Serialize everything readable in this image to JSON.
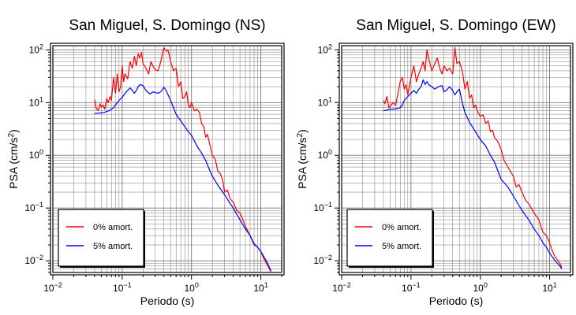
{
  "chart_data": [
    {
      "type": "line",
      "title": "San Miguel, S. Domingo (NS)",
      "xlabel": "Periodo (s)",
      "ylabel": "PSA (cm/s²)",
      "ylabel_main": "PSA (cm/s",
      "ylabel_sup": "2",
      "ylabel_close": ")",
      "x_scale": "log",
      "y_scale": "log",
      "xlim": [
        0.01,
        20
      ],
      "ylim": [
        0.006,
        120
      ],
      "grid": true,
      "legend_position": "bottom-left",
      "x_ticks": [
        {
          "base": "10",
          "exp": "−2"
        },
        {
          "base": "10",
          "exp": "−1"
        },
        {
          "base": "10",
          "exp": "0"
        },
        {
          "base": "10",
          "exp": "1"
        }
      ],
      "y_ticks": [
        {
          "base": "10",
          "exp": "−2"
        },
        {
          "base": "10",
          "exp": "−1"
        },
        {
          "base": "10",
          "exp": "0"
        },
        {
          "base": "10",
          "exp": "1"
        },
        {
          "base": "10",
          "exp": "2"
        }
      ],
      "series": [
        {
          "name": "0% amort.",
          "color": "#ff0000",
          "x": [
            0.04,
            0.042,
            0.045,
            0.048,
            0.05,
            0.053,
            0.056,
            0.06,
            0.063,
            0.067,
            0.07,
            0.075,
            0.08,
            0.085,
            0.09,
            0.095,
            0.1,
            0.105,
            0.11,
            0.12,
            0.13,
            0.14,
            0.15,
            0.16,
            0.17,
            0.18,
            0.19,
            0.2,
            0.22,
            0.24,
            0.26,
            0.28,
            0.3,
            0.33,
            0.36,
            0.4,
            0.43,
            0.46,
            0.5,
            0.55,
            0.6,
            0.65,
            0.7,
            0.75,
            0.8,
            0.85,
            0.9,
            0.95,
            1.0,
            1.1,
            1.2,
            1.3,
            1.4,
            1.5,
            1.6,
            1.7,
            1.8,
            2.0,
            2.2,
            2.4,
            2.6,
            2.8,
            3.0,
            3.3,
            3.6,
            4.0,
            4.5,
            5.0,
            5.5,
            6.0,
            7.0,
            8.0,
            9.0,
            10.0,
            11.0,
            12.0,
            13.0,
            14.0
          ],
          "values": [
            11.5,
            8.0,
            7.0,
            9.5,
            8.2,
            9.0,
            7.5,
            12.0,
            10.0,
            13.0,
            11.0,
            30.0,
            15.0,
            35.0,
            16.0,
            20.0,
            50.0,
            25.0,
            35.0,
            28.0,
            60.0,
            45.0,
            75.0,
            50.0,
            85.0,
            70.0,
            90.0,
            55.0,
            45.0,
            35.0,
            60.0,
            48.0,
            42.0,
            40.0,
            60.0,
            110.0,
            95.0,
            98.0,
            60.0,
            40.0,
            45.0,
            20.0,
            25.0,
            12.0,
            13.0,
            16.0,
            9.0,
            8.0,
            10.0,
            7.0,
            7.5,
            6.5,
            4.0,
            3.5,
            2.2,
            2.5,
            1.8,
            1.0,
            0.85,
            0.5,
            0.45,
            0.35,
            0.2,
            0.22,
            0.15,
            0.13,
            0.09,
            0.08,
            0.06,
            0.045,
            0.03,
            0.02,
            0.018,
            0.015,
            0.011,
            0.009,
            0.0075,
            0.0062
          ]
        },
        {
          "name": "5% amort.",
          "color": "#0000ff",
          "x": [
            0.04,
            0.045,
            0.05,
            0.055,
            0.06,
            0.065,
            0.07,
            0.075,
            0.08,
            0.09,
            0.1,
            0.11,
            0.12,
            0.13,
            0.14,
            0.15,
            0.16,
            0.17,
            0.18,
            0.2,
            0.22,
            0.25,
            0.28,
            0.3,
            0.33,
            0.36,
            0.4,
            0.43,
            0.46,
            0.5,
            0.55,
            0.6,
            0.7,
            0.8,
            0.9,
            1.0,
            1.2,
            1.4,
            1.6,
            1.8,
            2.0,
            2.5,
            3.0,
            3.5,
            4.0,
            5.0,
            6.0,
            7.0,
            8.0,
            9.0,
            10.0,
            12.0,
            14.0
          ],
          "values": [
            6.2,
            6.3,
            6.4,
            6.5,
            6.8,
            7.0,
            7.5,
            8.0,
            9.0,
            11.0,
            12.5,
            15.0,
            17.0,
            19.0,
            17.0,
            15.0,
            17.0,
            20.0,
            22.0,
            21.0,
            17.0,
            14.5,
            16.0,
            15.5,
            15.0,
            16.0,
            19.5,
            17.0,
            14.0,
            11.0,
            8.0,
            6.0,
            4.5,
            3.5,
            2.8,
            2.4,
            1.5,
            1.1,
            0.8,
            0.55,
            0.4,
            0.25,
            0.18,
            0.13,
            0.1,
            0.06,
            0.04,
            0.03,
            0.021,
            0.018,
            0.015,
            0.01,
            0.0065
          ]
        }
      ]
    },
    {
      "type": "line",
      "title": "San Miguel, S. Domingo (EW)",
      "xlabel": "Periodo (s)",
      "ylabel": "PSA (cm/s²)",
      "ylabel_main": "PSA (cm/s",
      "ylabel_sup": "2",
      "ylabel_close": ")",
      "x_scale": "log",
      "y_scale": "log",
      "xlim": [
        0.01,
        20
      ],
      "ylim": [
        0.006,
        120
      ],
      "grid": true,
      "legend_position": "bottom-left",
      "x_ticks": [
        {
          "base": "10",
          "exp": "−2"
        },
        {
          "base": "10",
          "exp": "−1"
        },
        {
          "base": "10",
          "exp": "0"
        },
        {
          "base": "10",
          "exp": "1"
        }
      ],
      "y_ticks": [
        {
          "base": "10",
          "exp": "−2"
        },
        {
          "base": "10",
          "exp": "−1"
        },
        {
          "base": "10",
          "exp": "0"
        },
        {
          "base": "10",
          "exp": "1"
        },
        {
          "base": "10",
          "exp": "2"
        }
      ],
      "series": [
        {
          "name": "0% amort.",
          "color": "#ff0000",
          "x": [
            0.04,
            0.042,
            0.045,
            0.048,
            0.05,
            0.055,
            0.06,
            0.065,
            0.07,
            0.075,
            0.08,
            0.085,
            0.09,
            0.1,
            0.11,
            0.12,
            0.13,
            0.14,
            0.15,
            0.16,
            0.17,
            0.18,
            0.2,
            0.22,
            0.24,
            0.26,
            0.28,
            0.3,
            0.33,
            0.36,
            0.4,
            0.43,
            0.46,
            0.5,
            0.55,
            0.6,
            0.65,
            0.7,
            0.75,
            0.8,
            0.85,
            0.9,
            1.0,
            1.1,
            1.2,
            1.3,
            1.4,
            1.5,
            1.6,
            1.8,
            2.0,
            2.2,
            2.5,
            3.0,
            3.3,
            3.6,
            4.0,
            4.5,
            5.0,
            6.0,
            7.0,
            8.0,
            9.0,
            10.0,
            11.0,
            12.0,
            14.0,
            15.0
          ],
          "values": [
            11.0,
            9.5,
            13.0,
            8.0,
            8.5,
            10.0,
            9.0,
            15.0,
            25.0,
            30.0,
            18.0,
            22.0,
            14.0,
            30.0,
            50.0,
            25.0,
            35.0,
            45.0,
            60.0,
            40.0,
            100.0,
            70.0,
            40.0,
            55.0,
            70.0,
            45.0,
            35.0,
            50.0,
            40.0,
            45.0,
            35.0,
            110.0,
            55.0,
            60.0,
            40.0,
            18.0,
            25.0,
            12.0,
            14.0,
            8.0,
            9.0,
            7.0,
            5.5,
            5.8,
            4.0,
            4.5,
            2.8,
            3.0,
            2.2,
            1.8,
            1.3,
            0.8,
            0.6,
            0.4,
            0.25,
            0.28,
            0.2,
            0.14,
            0.12,
            0.08,
            0.06,
            0.035,
            0.03,
            0.022,
            0.015,
            0.012,
            0.009,
            0.0075
          ]
        },
        {
          "name": "5% amort.",
          "color": "#0000ff",
          "x": [
            0.04,
            0.045,
            0.05,
            0.055,
            0.06,
            0.065,
            0.07,
            0.075,
            0.08,
            0.09,
            0.1,
            0.11,
            0.12,
            0.13,
            0.14,
            0.15,
            0.16,
            0.17,
            0.18,
            0.2,
            0.22,
            0.25,
            0.28,
            0.3,
            0.33,
            0.36,
            0.4,
            0.43,
            0.46,
            0.5,
            0.55,
            0.6,
            0.7,
            0.8,
            0.9,
            1.0,
            1.2,
            1.4,
            1.6,
            1.8,
            2.0,
            2.5,
            3.0,
            3.5,
            4.0,
            5.0,
            6.0,
            7.0,
            8.0,
            9.0,
            10.0,
            12.0,
            14.0,
            15.0
          ],
          "values": [
            7.0,
            7.2,
            7.5,
            7.5,
            7.6,
            7.8,
            8.0,
            9.0,
            11.0,
            13.0,
            15.0,
            17.0,
            15.0,
            18.0,
            20.0,
            27.0,
            22.0,
            25.0,
            22.0,
            20.0,
            18.0,
            20.0,
            21.0,
            16.0,
            17.5,
            20.0,
            17.0,
            14.0,
            16.0,
            18.0,
            10.0,
            6.5,
            4.2,
            3.2,
            2.5,
            2.0,
            1.5,
            1.0,
            0.75,
            0.5,
            0.35,
            0.25,
            0.17,
            0.12,
            0.09,
            0.06,
            0.04,
            0.03,
            0.022,
            0.018,
            0.014,
            0.01,
            0.008,
            0.007
          ]
        }
      ]
    }
  ]
}
